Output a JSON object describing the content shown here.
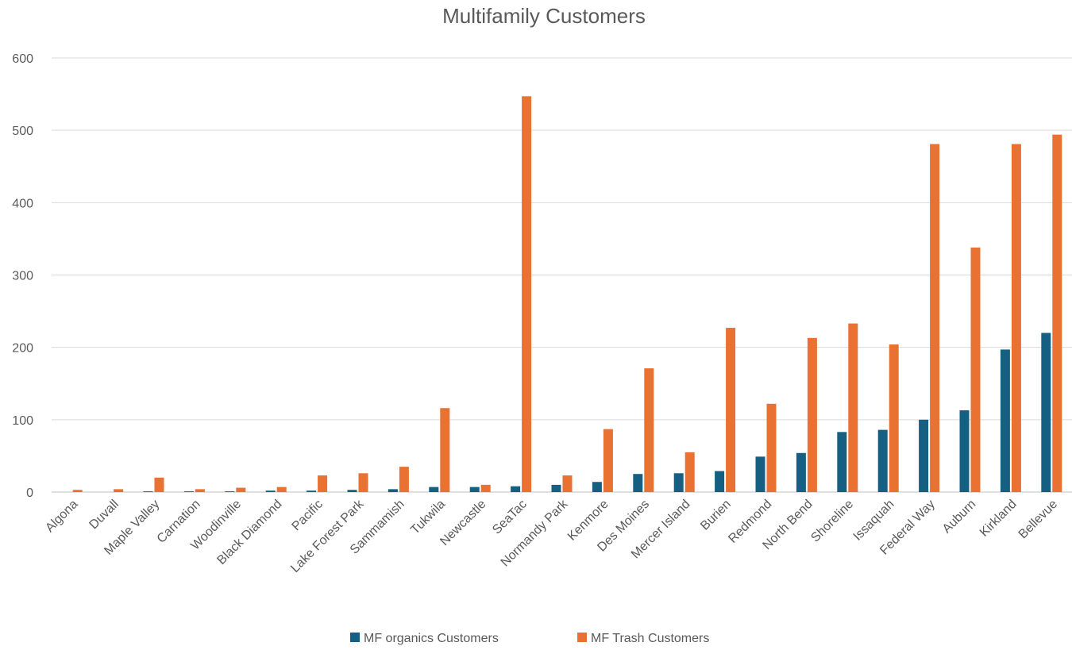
{
  "chart_data": {
    "type": "bar",
    "title": "Multifamily Customers",
    "xlabel": "",
    "ylabel": "",
    "ylim": [
      0,
      600
    ],
    "yticks": [
      0,
      100,
      200,
      300,
      400,
      500,
      600
    ],
    "grid": true,
    "legend_position": "bottom",
    "categories": [
      "Algona",
      "Duvall",
      "Maple Valley",
      "Carnation",
      "Woodinville",
      "Black Diamond",
      "Pacific",
      "Lake Forest Park",
      "Sammamish",
      "Tukwila",
      "Newcastle",
      "SeaTac",
      "Normandy Park",
      "Kenmore",
      "Des Moines",
      "Mercer Island",
      "Burien",
      "Redmond",
      "North Bend",
      "Shoreline",
      "Issaquah",
      "Federal Way",
      "Auburn",
      "Kirkland",
      "Bellevue"
    ],
    "series": [
      {
        "name": "MF organics Customers",
        "color": "#156082",
        "values": [
          0,
          0,
          1,
          1,
          1,
          2,
          2,
          3,
          4,
          7,
          7,
          8,
          10,
          14,
          25,
          26,
          29,
          49,
          54,
          83,
          86,
          100,
          113,
          197,
          220
        ]
      },
      {
        "name": "MF Trash Customers",
        "color": "#E97132",
        "values": [
          3,
          4,
          20,
          4,
          6,
          7,
          23,
          26,
          35,
          116,
          10,
          547,
          23,
          87,
          171,
          55,
          227,
          122,
          213,
          233,
          204,
          481,
          338,
          481,
          494
        ]
      }
    ]
  }
}
